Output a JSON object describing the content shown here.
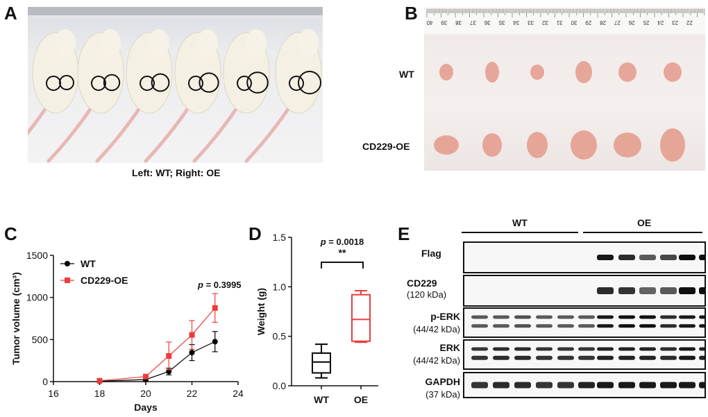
{
  "panels": {
    "a": {
      "letter": "A",
      "caption": "Left: WT; Right: OE"
    },
    "b": {
      "letter": "B",
      "row_labels": [
        "WT",
        "CD229-OE"
      ],
      "ruler_numbers": [
        "40",
        "39",
        "38",
        "37",
        "36",
        "35",
        "34",
        "33",
        "32",
        "31",
        "30",
        "29",
        "28",
        "27",
        "26",
        "25",
        "24",
        "23",
        "22"
      ]
    },
    "c": {
      "letter": "C"
    },
    "d": {
      "letter": "D"
    },
    "e": {
      "letter": "E"
    }
  },
  "blot": {
    "group_labels": [
      "WT",
      "OE"
    ],
    "rows": [
      {
        "name": "Flag",
        "kda": ""
      },
      {
        "name": "CD229",
        "kda": "(120 kDa)"
      },
      {
        "name": "p-ERK",
        "kda": "(44/42 kDa)"
      },
      {
        "name": "ERK",
        "kda": "(44/42 kDa)"
      },
      {
        "name": "GAPDH",
        "kda": "(37 kDa)"
      }
    ]
  },
  "chart_data": [
    {
      "type": "line",
      "xlabel": "Days",
      "ylabel": "Tumor volume (cm³)",
      "xlim": [
        16,
        24
      ],
      "ylim": [
        0,
        1500
      ],
      "xticks": [
        16,
        18,
        20,
        22,
        24
      ],
      "yticks": [
        0,
        500,
        1000,
        1500
      ],
      "legend_position": "top-left",
      "annotation": {
        "prefix": "p",
        "text": " = 0.3995"
      },
      "series": [
        {
          "name": "WT",
          "color": "#000000",
          "marker": "circle",
          "x": [
            18,
            20,
            21,
            22,
            23
          ],
          "y": [
            5,
            25,
            120,
            345,
            475
          ],
          "err": [
            3,
            15,
            40,
            95,
            120
          ]
        },
        {
          "name": "CD229-OE",
          "color": "#ee3b3b",
          "marker": "square",
          "x": [
            18,
            20,
            21,
            22,
            23
          ],
          "y": [
            10,
            60,
            305,
            555,
            875
          ],
          "err": [
            5,
            25,
            165,
            170,
            170
          ]
        }
      ]
    },
    {
      "type": "box",
      "ylabel": "Weight (g)",
      "ylim": [
        0,
        1.5
      ],
      "yticks": [
        "0.0",
        "0.5",
        "1.0",
        "1.5"
      ],
      "categories": [
        "WT",
        "OE"
      ],
      "boxes": [
        {
          "name": "WT",
          "color": "#000000",
          "min": 0.08,
          "q1": 0.13,
          "median": 0.24,
          "q3": 0.33,
          "max": 0.42
        },
        {
          "name": "OE",
          "color": "#ee3b3b",
          "min": 0.44,
          "q1": 0.45,
          "median": 0.67,
          "q3": 0.92,
          "max": 0.96
        }
      ],
      "annotation": {
        "prefix": "p",
        "text": " = 0.0018",
        "stars": "**"
      }
    }
  ]
}
